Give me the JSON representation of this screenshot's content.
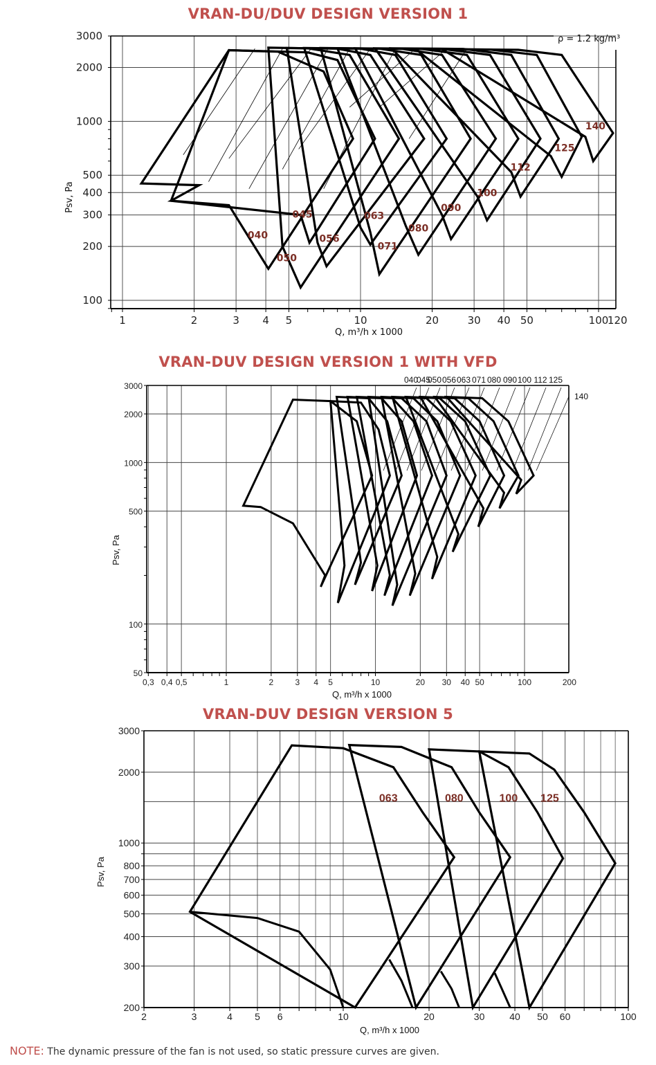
{
  "page": {
    "note_label": "NOTE:",
    "note_text": " The dynamic pressure of the fan is not used, so static pressure curves are given."
  },
  "colors": {
    "title": "#c0504d",
    "label": "#7b2e25",
    "curve": "#000000",
    "grid": "#555555"
  },
  "chart_data": [
    {
      "type": "line",
      "title": "VRAN-DU/DUV DESIGN VERSION 1",
      "xlabel": "Q, m³/h x 1000",
      "ylabel": "Psv, Pa",
      "annotation": "ρ = 1.2 kg/m³",
      "xscale": "log",
      "yscale": "log",
      "xlim": [
        0.9,
        120
      ],
      "ylim": [
        90,
        3000
      ],
      "xticks": [
        1,
        2,
        3,
        4,
        5,
        10,
        20,
        30,
        40,
        50,
        100,
        120
      ],
      "xtick_labels": [
        "1",
        "2",
        "3",
        "4",
        "5",
        "10",
        "20",
        "30",
        "40",
        "50",
        "100",
        "120"
      ],
      "yticks": [
        100,
        200,
        300,
        400,
        500,
        1000,
        2000,
        3000
      ],
      "ytick_labels": [
        "100",
        "200",
        "300",
        "400",
        "500",
        "1000",
        "2000",
        "3000"
      ],
      "grid": true,
      "legend": "inline labels",
      "series": [
        {
          "name": "040",
          "label_at": [
            3.7,
            222
          ],
          "poly": [
            [
              1.2,
              450
            ],
            [
              2.8,
              2500
            ],
            [
              4.5,
              2450
            ],
            [
              7,
              1900
            ],
            [
              9.3,
              800
            ],
            [
              4.1,
              150
            ],
            [
              2.8,
              340
            ],
            [
              1.6,
              360
            ],
            [
              2.1,
              440
            ]
          ]
        },
        {
          "name": "045",
          "label_at": [
            5.7,
            290
          ],
          "poly": [
            [
              1.6,
              360
            ],
            [
              2.8,
              2500
            ],
            [
              6,
              2430
            ],
            [
              8,
              2200
            ],
            [
              11.5,
              800
            ],
            [
              6.1,
              210
            ],
            [
              5.6,
              300
            ]
          ]
        },
        {
          "name": "050",
          "label_at": [
            4.9,
            165
          ],
          "poly": [
            [
              4.1,
              2580
            ],
            [
              6,
              2560
            ],
            [
              9,
              2350
            ],
            [
              14.5,
              800
            ],
            [
              5.6,
              118
            ],
            [
              4.7,
              200
            ]
          ]
        },
        {
          "name": "056",
          "label_at": [
            7.4,
            212
          ],
          "poly": [
            [
              4.9,
              2570
            ],
            [
              8,
              2550
            ],
            [
              11,
              2350
            ],
            [
              18.5,
              800
            ],
            [
              7.2,
              155
            ],
            [
              6.6,
              210
            ]
          ]
        },
        {
          "name": "063",
          "label_at": [
            11.4,
            285
          ],
          "poly": [
            [
              5.8,
              2570
            ],
            [
              10,
              2550
            ],
            [
              14,
              2350
            ],
            [
              23,
              800
            ],
            [
              11,
              205
            ],
            [
              10,
              255
            ]
          ]
        },
        {
          "name": "071",
          "label_at": [
            13,
            192
          ],
          "poly": [
            [
              6.8,
              2570
            ],
            [
              12,
              2550
            ],
            [
              18,
              2350
            ],
            [
              29,
              800
            ],
            [
              12,
              140
            ],
            [
              11,
              240
            ]
          ]
        },
        {
          "name": "080",
          "label_at": [
            17.5,
            243
          ],
          "poly": [
            [
              8,
              2560
            ],
            [
              15,
              2540
            ],
            [
              22,
              2350
            ],
            [
              37,
              800
            ],
            [
              17.5,
              180
            ],
            [
              15.5,
              260
            ]
          ]
        },
        {
          "name": "090",
          "label_at": [
            24,
            315
          ],
          "poly": [
            [
              9.5,
              2560
            ],
            [
              18,
              2540
            ],
            [
              28,
              2350
            ],
            [
              46,
              800
            ],
            [
              24,
              220
            ],
            [
              22,
              300
            ]
          ]
        },
        {
          "name": "100",
          "label_at": [
            34,
            382
          ],
          "poly": [
            [
              11.5,
              2560
            ],
            [
              22,
              2540
            ],
            [
              35,
              2350
            ],
            [
              57,
              800
            ],
            [
              34,
              280
            ],
            [
              31,
              380
            ]
          ]
        },
        {
          "name": "112",
          "label_at": [
            47,
            530
          ],
          "poly": [
            [
              13.5,
              2560
            ],
            [
              27,
              2540
            ],
            [
              43,
              2350
            ],
            [
              68,
              800
            ],
            [
              47,
              380
            ],
            [
              43,
              520
            ]
          ]
        },
        {
          "name": "125",
          "label_at": [
            72,
            680
          ],
          "poly": [
            [
              17,
              2540
            ],
            [
              35,
              2520
            ],
            [
              55,
              2350
            ],
            [
              85,
              820
            ],
            [
              70,
              490
            ],
            [
              63,
              640
            ]
          ]
        },
        {
          "name": "140",
          "label_at": [
            97,
            900
          ],
          "poly": [
            [
              22,
              2530
            ],
            [
              46,
              2510
            ],
            [
              70,
              2350
            ],
            [
              115,
              860
            ],
            [
              95,
              600
            ],
            [
              88,
              820
            ]
          ]
        }
      ]
    },
    {
      "type": "line",
      "title": "VRAN-DUV DESIGN VERSION 1 WITH VFD",
      "xlabel": "Q, m³/h x 1000",
      "ylabel": "Psv, Pa",
      "xscale": "log",
      "yscale": "log",
      "xlim": [
        0.3,
        200
      ],
      "ylim": [
        50,
        3000
      ],
      "xticks": [
        0.3,
        0.4,
        0.5,
        1,
        2,
        3,
        4,
        5,
        10,
        20,
        30,
        40,
        50,
        100,
        200
      ],
      "xtick_labels": [
        "0,3",
        "0,4",
        "0,5",
        "1",
        "2",
        "3",
        "4",
        "5",
        "10",
        "20",
        "30",
        "40",
        "50",
        "100",
        "200"
      ],
      "yticks": [
        50,
        100,
        500,
        1000,
        2000,
        3000
      ],
      "ytick_labels": [
        "50",
        "100",
        "500",
        "1000",
        "2000",
        "3000"
      ],
      "grid": true,
      "legend": "top labels",
      "legend_labels": [
        "040",
        "045",
        "050",
        "056",
        "063",
        "071",
        "080",
        "090",
        "100",
        "112",
        "125",
        "140"
      ],
      "series": [
        {
          "name": "040",
          "poly": [
            [
              1.3,
              540
            ],
            [
              2.8,
              2450
            ],
            [
              5,
              2400
            ],
            [
              7.5,
              1800
            ],
            [
              9.5,
              830
            ],
            [
              4.3,
              170
            ],
            [
              4.6,
              200
            ],
            [
              2.8,
              420
            ],
            [
              1.7,
              530
            ]
          ]
        },
        {
          "name": "045",
          "poly": [
            [
              5,
              2400
            ],
            [
              8,
              2350
            ],
            [
              10.5,
              1600
            ],
            [
              12.5,
              830
            ],
            [
              5.6,
              135
            ],
            [
              6.2,
              230
            ]
          ]
        },
        {
          "name": "050",
          "poly": [
            [
              5.5,
              2550
            ],
            [
              9,
              2500
            ],
            [
              12,
              1800
            ],
            [
              15,
              830
            ],
            [
              7.3,
              175
            ],
            [
              8,
              240
            ]
          ]
        },
        {
          "name": "056",
          "poly": [
            [
              6.5,
              2550
            ],
            [
              11,
              2500
            ],
            [
              15,
              1800
            ],
            [
              19,
              830
            ],
            [
              9.5,
              160
            ],
            [
              10.3,
              230
            ]
          ]
        },
        {
          "name": "063",
          "poly": [
            [
              7.5,
              2550
            ],
            [
              13,
              2500
            ],
            [
              18,
              1800
            ],
            [
              24,
              830
            ],
            [
              11.5,
              150
            ],
            [
              12.5,
              200
            ]
          ]
        },
        {
          "name": "071",
          "poly": [
            [
              9,
              2550
            ],
            [
              15,
              2500
            ],
            [
              22,
              1800
            ],
            [
              30,
              830
            ],
            [
              13,
              130
            ],
            [
              14,
              175
            ]
          ]
        },
        {
          "name": "080",
          "poly": [
            [
              11,
              2550
            ],
            [
              18,
              2500
            ],
            [
              26,
              1800
            ],
            [
              37,
              830
            ],
            [
              17,
              150
            ],
            [
              18.5,
              205
            ]
          ]
        },
        {
          "name": "090",
          "poly": [
            [
              13,
              2550
            ],
            [
              22,
              2500
            ],
            [
              32,
              1800
            ],
            [
              47,
              830
            ],
            [
              24,
              190
            ],
            [
              26,
              260
            ]
          ]
        },
        {
          "name": "100",
          "poly": [
            [
              16,
              2550
            ],
            [
              27,
              2500
            ],
            [
              40,
              1800
            ],
            [
              59,
              830
            ],
            [
              33,
              280
            ],
            [
              36,
              360
            ]
          ]
        },
        {
          "name": "112",
          "poly": [
            [
              20,
              2550
            ],
            [
              34,
              2500
            ],
            [
              50,
              1800
            ],
            [
              73,
              830
            ],
            [
              49,
              400
            ],
            [
              53,
              520
            ]
          ]
        },
        {
          "name": "125",
          "poly": [
            [
              25,
              2550
            ],
            [
              42,
              2500
            ],
            [
              62,
              1800
            ],
            [
              91,
              830
            ],
            [
              68,
              520
            ],
            [
              73,
              650
            ]
          ]
        },
        {
          "name": "140",
          "poly": [
            [
              30,
              2550
            ],
            [
              52,
              2500
            ],
            [
              78,
              1800
            ],
            [
              115,
              830
            ],
            [
              88,
              640
            ],
            [
              95,
              780
            ]
          ]
        }
      ]
    },
    {
      "type": "line",
      "title": "VRAN-DUV DESIGN VERSION 5",
      "xlabel": "Q, m³/h x 1000",
      "ylabel": "Psv, Pa",
      "xscale": "log",
      "yscale": "log",
      "xlim": [
        2,
        100
      ],
      "ylim": [
        200,
        3000
      ],
      "xticks": [
        2,
        3,
        4,
        5,
        6,
        10,
        20,
        30,
        40,
        50,
        60,
        100
      ],
      "xtick_labels": [
        "2",
        "3",
        "4",
        "5",
        "6",
        "10",
        "20",
        "30",
        "40",
        "50",
        "60",
        "100"
      ],
      "yticks": [
        200,
        300,
        400,
        500,
        600,
        700,
        800,
        1000,
        2000,
        3000
      ],
      "ytick_labels": [
        "200",
        "300",
        "400",
        "500",
        "600",
        "700",
        "800",
        "1000",
        "2000",
        "3000"
      ],
      "grid": true,
      "legend": "inline labels",
      "series": [
        {
          "name": "063",
          "label_at": [
            14.4,
            1500
          ],
          "poly": [
            [
              2.9,
              510
            ],
            [
              6.6,
              2600
            ],
            [
              10,
              2530
            ],
            [
              15,
              2100
            ],
            [
              19,
              1350
            ],
            [
              24.5,
              870
            ],
            [
              11,
              200
            ]
          ],
          "lower": [
            [
              2.9,
              510
            ],
            [
              5,
              480
            ],
            [
              7,
              420
            ],
            [
              9,
              290
            ],
            [
              10,
              200
            ]
          ],
          "spur": [
            [
              14.5,
              320
            ],
            [
              16,
              260
            ],
            [
              17.5,
              200
            ]
          ]
        },
        {
          "name": "080",
          "label_at": [
            24.5,
            1500
          ],
          "poly": [
            [
              10.5,
              2610
            ],
            [
              16,
              2560
            ],
            [
              24,
              2100
            ],
            [
              30,
              1350
            ],
            [
              38.5,
              870
            ],
            [
              18,
              200
            ]
          ],
          "spur": [
            [
              22,
              285
            ],
            [
              24,
              240
            ],
            [
              25.5,
              200
            ]
          ]
        },
        {
          "name": "100",
          "label_at": [
            38,
            1500
          ],
          "poly": [
            [
              20,
              2500
            ],
            [
              30,
              2450
            ],
            [
              38,
              2100
            ],
            [
              48,
              1350
            ],
            [
              59,
              860
            ],
            [
              28.5,
              200
            ]
          ],
          "spur": [
            [
              34,
              280
            ],
            [
              36,
              240
            ],
            [
              38.5,
              200
            ]
          ]
        },
        {
          "name": "125",
          "label_at": [
            53,
            1500
          ],
          "poly": [
            [
              30,
              2450
            ],
            [
              45,
              2400
            ],
            [
              55,
              2050
            ],
            [
              70,
              1350
            ],
            [
              90,
              820
            ],
            [
              45,
              200
            ]
          ]
        }
      ]
    }
  ],
  "axes": {
    "c1_rho": "ρ = 1.2 kg/m³"
  }
}
